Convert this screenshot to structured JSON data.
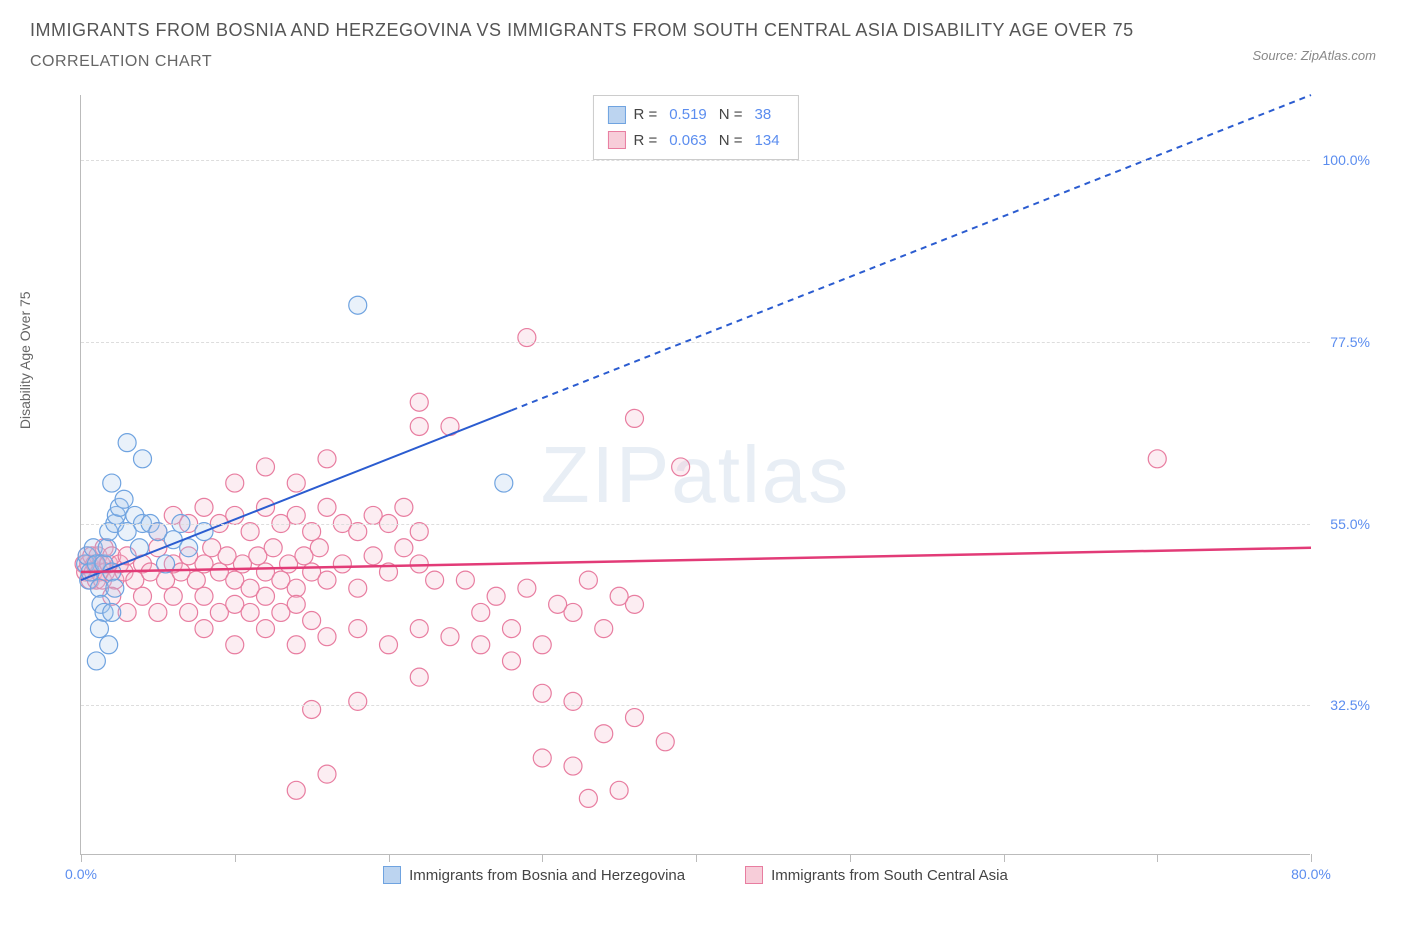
{
  "title_main": "IMMIGRANTS FROM BOSNIA AND HERZEGOVINA VS IMMIGRANTS FROM SOUTH CENTRAL ASIA DISABILITY AGE OVER 75",
  "title_sub": "CORRELATION CHART",
  "source_prefix": "Source: ",
  "source_name": "ZipAtlas.com",
  "ylabel": "Disability Age Over 75",
  "watermark_bold": "ZIP",
  "watermark_light": "atlas",
  "chart": {
    "type": "scatter-correlation",
    "xlim": [
      0,
      80
    ],
    "ylim": [
      14,
      108
    ],
    "x_ticks": [
      0,
      10,
      20,
      30,
      40,
      50,
      60,
      70,
      80
    ],
    "x_tick_labels": {
      "0": "0.0%",
      "80": "80.0%"
    },
    "y_gridlines": [
      32.5,
      55.0,
      77.5,
      100.0
    ],
    "y_tick_labels": [
      "32.5%",
      "55.0%",
      "77.5%",
      "100.0%"
    ],
    "background_color": "#ffffff",
    "grid_color": "#dddddd",
    "axis_color": "#bbbbbb",
    "tick_label_color": "#5b8def",
    "marker_radius": 9,
    "marker_fill_opacity": 0.25,
    "marker_stroke_width": 1.2,
    "series": [
      {
        "id": "bosnia",
        "label": "Immigrants from Bosnia and Herzegovina",
        "color_stroke": "#6fa3e0",
        "color_fill": "#a8c8ec",
        "swatch_fill": "#bcd4f0",
        "swatch_border": "#6fa3e0",
        "R": "0.519",
        "N": "38",
        "trend": {
          "x1": 0,
          "y1": 48,
          "x2": 80,
          "y2": 108,
          "solid_until_x": 28,
          "color": "#2b5cd0",
          "width": 2,
          "dash": "6,5"
        },
        "points": [
          [
            0.3,
            50
          ],
          [
            0.4,
            51
          ],
          [
            0.5,
            48
          ],
          [
            0.6,
            49
          ],
          [
            0.8,
            52
          ],
          [
            1.0,
            50
          ],
          [
            1.2,
            47
          ],
          [
            1.3,
            45
          ],
          [
            1.5,
            44
          ],
          [
            1.5,
            50
          ],
          [
            1.7,
            52
          ],
          [
            1.8,
            54
          ],
          [
            2.0,
            49
          ],
          [
            2.2,
            55
          ],
          [
            2.3,
            56
          ],
          [
            2.5,
            57
          ],
          [
            2.8,
            58
          ],
          [
            3.0,
            54
          ],
          [
            1.2,
            42
          ],
          [
            1.8,
            40
          ],
          [
            3.5,
            56
          ],
          [
            3.8,
            52
          ],
          [
            4.0,
            55
          ],
          [
            4.5,
            55
          ],
          [
            5.0,
            54
          ],
          [
            5.5,
            50
          ],
          [
            6.0,
            53
          ],
          [
            6.5,
            55
          ],
          [
            4.0,
            63
          ],
          [
            3.0,
            65
          ],
          [
            2.0,
            60
          ],
          [
            7.0,
            52
          ],
          [
            8.0,
            54
          ],
          [
            2.0,
            44
          ],
          [
            1.0,
            38
          ],
          [
            2.2,
            47
          ],
          [
            18.0,
            82
          ],
          [
            27.5,
            60
          ]
        ]
      },
      {
        "id": "south_central_asia",
        "label": "Immigrants from South Central Asia",
        "color_stroke": "#e87da0",
        "color_fill": "#f5b8cc",
        "swatch_fill": "#f7cdd9",
        "swatch_border": "#e87da0",
        "R": "0.063",
        "N": "134",
        "trend": {
          "x1": 0,
          "y1": 49,
          "x2": 80,
          "y2": 52,
          "solid_until_x": 80,
          "color": "#e23b77",
          "width": 2.5,
          "dash": ""
        },
        "points": [
          [
            0.2,
            50
          ],
          [
            0.3,
            49
          ],
          [
            0.4,
            51
          ],
          [
            0.5,
            50
          ],
          [
            0.6,
            48
          ],
          [
            0.7,
            51
          ],
          [
            0.8,
            49
          ],
          [
            0.9,
            50
          ],
          [
            1.0,
            48
          ],
          [
            1.1,
            51
          ],
          [
            1.2,
            49
          ],
          [
            1.3,
            50
          ],
          [
            1.4,
            48
          ],
          [
            1.5,
            52
          ],
          [
            1.6,
            49
          ],
          [
            1.8,
            50
          ],
          [
            2.0,
            51
          ],
          [
            2.2,
            48
          ],
          [
            2.5,
            50
          ],
          [
            2.8,
            49
          ],
          [
            3.0,
            51
          ],
          [
            3.5,
            48
          ],
          [
            4.0,
            50
          ],
          [
            4.5,
            49
          ],
          [
            5.0,
            52
          ],
          [
            5.5,
            48
          ],
          [
            6.0,
            50
          ],
          [
            6.5,
            49
          ],
          [
            7.0,
            51
          ],
          [
            7.5,
            48
          ],
          [
            8.0,
            50
          ],
          [
            8.5,
            52
          ],
          [
            9.0,
            49
          ],
          [
            9.5,
            51
          ],
          [
            10.0,
            48
          ],
          [
            10.5,
            50
          ],
          [
            11.0,
            47
          ],
          [
            11.5,
            51
          ],
          [
            12.0,
            49
          ],
          [
            12.5,
            52
          ],
          [
            13.0,
            48
          ],
          [
            13.5,
            50
          ],
          [
            14.0,
            47
          ],
          [
            14.5,
            51
          ],
          [
            15.0,
            49
          ],
          [
            15.5,
            52
          ],
          [
            16.0,
            48
          ],
          [
            17.0,
            50
          ],
          [
            18.0,
            47
          ],
          [
            19.0,
            51
          ],
          [
            20.0,
            49
          ],
          [
            21.0,
            52
          ],
          [
            22.0,
            50
          ],
          [
            23.0,
            48
          ],
          [
            2.0,
            46
          ],
          [
            3.0,
            44
          ],
          [
            4.0,
            46
          ],
          [
            5.0,
            44
          ],
          [
            6.0,
            46
          ],
          [
            7.0,
            44
          ],
          [
            8.0,
            46
          ],
          [
            9.0,
            44
          ],
          [
            10.0,
            45
          ],
          [
            11.0,
            44
          ],
          [
            12.0,
            46
          ],
          [
            13.0,
            44
          ],
          [
            14.0,
            45
          ],
          [
            15.0,
            43
          ],
          [
            5.0,
            54
          ],
          [
            6.0,
            56
          ],
          [
            7.0,
            55
          ],
          [
            8.0,
            57
          ],
          [
            9.0,
            55
          ],
          [
            10.0,
            56
          ],
          [
            11.0,
            54
          ],
          [
            12.0,
            57
          ],
          [
            13.0,
            55
          ],
          [
            14.0,
            56
          ],
          [
            15.0,
            54
          ],
          [
            16.0,
            57
          ],
          [
            17.0,
            55
          ],
          [
            18.0,
            54
          ],
          [
            19.0,
            56
          ],
          [
            20.0,
            55
          ],
          [
            21.0,
            57
          ],
          [
            22.0,
            54
          ],
          [
            8.0,
            42
          ],
          [
            10.0,
            40
          ],
          [
            12.0,
            42
          ],
          [
            14.0,
            40
          ],
          [
            16.0,
            41
          ],
          [
            18.0,
            42
          ],
          [
            20.0,
            40
          ],
          [
            22.0,
            42
          ],
          [
            24.0,
            41
          ],
          [
            26.0,
            40
          ],
          [
            28.0,
            42
          ],
          [
            30.0,
            40
          ],
          [
            32.0,
            44
          ],
          [
            34.0,
            42
          ],
          [
            36.0,
            45
          ],
          [
            25.0,
            48
          ],
          [
            27.0,
            46
          ],
          [
            29.0,
            47
          ],
          [
            31.0,
            45
          ],
          [
            33.0,
            48
          ],
          [
            35.0,
            46
          ],
          [
            10.0,
            60
          ],
          [
            12.0,
            62
          ],
          [
            14.0,
            60
          ],
          [
            16.0,
            63
          ],
          [
            22.0,
            67
          ],
          [
            24.0,
            67
          ],
          [
            36.0,
            68
          ],
          [
            39.0,
            62
          ],
          [
            22.0,
            70
          ],
          [
            29.0,
            78
          ],
          [
            18.0,
            33
          ],
          [
            15.0,
            32
          ],
          [
            22.0,
            36
          ],
          [
            30.0,
            34
          ],
          [
            32.0,
            33
          ],
          [
            34.0,
            29
          ],
          [
            36.0,
            31
          ],
          [
            38.0,
            28
          ],
          [
            30.0,
            26
          ],
          [
            32.0,
            25
          ],
          [
            14.0,
            22
          ],
          [
            16.0,
            24
          ],
          [
            33.0,
            21
          ],
          [
            35.0,
            22
          ],
          [
            28.0,
            38
          ],
          [
            26.0,
            44
          ],
          [
            70.0,
            63
          ]
        ]
      }
    ]
  },
  "stats_labels": {
    "R": "R =",
    "N": "N ="
  }
}
